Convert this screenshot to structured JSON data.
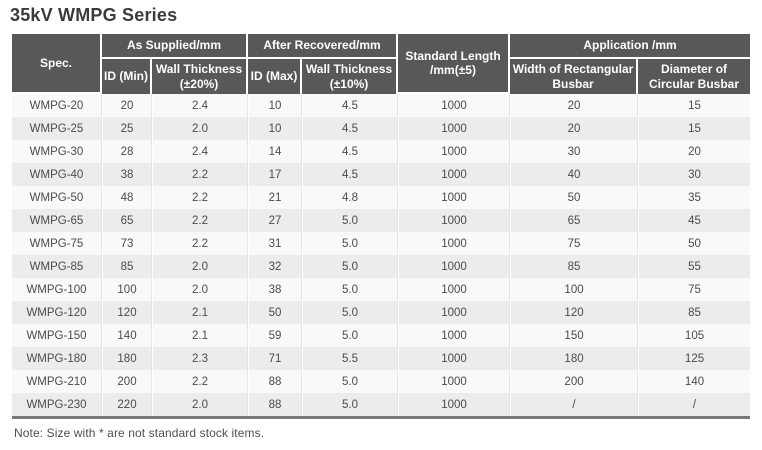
{
  "page": {
    "title": "35kV WMPG Series",
    "note": "Note: Size with * are not standard stock items."
  },
  "table": {
    "header": {
      "spec": "Spec.",
      "as_supplied": "As Supplied/mm",
      "after_recovered": "After Recovered/mm",
      "standard_length": "Standard Length /mm(±5)",
      "application": "Application /mm",
      "id_min": "ID (Min)",
      "wall_thickness_20": "Wall Thickness (±20%)",
      "id_max": "ID (Max)",
      "wall_thickness_10": "Wall Thickness (±10%)",
      "width_rect_busbar": "Width of Rectangular Busbar",
      "dia_circ_busbar": "Diameter of Circular Busbar"
    },
    "rows": [
      [
        "WMPG-20",
        "20",
        "2.4",
        "10",
        "4.5",
        "1000",
        "20",
        "15"
      ],
      [
        "WMPG-25",
        "25",
        "2.0",
        "10",
        "4.5",
        "1000",
        "20",
        "15"
      ],
      [
        "WMPG-30",
        "28",
        "2.4",
        "14",
        "4.5",
        "1000",
        "30",
        "20"
      ],
      [
        "WMPG-40",
        "38",
        "2.2",
        "17",
        "4.5",
        "1000",
        "40",
        "30"
      ],
      [
        "WMPG-50",
        "48",
        "2.2",
        "21",
        "4.8",
        "1000",
        "50",
        "35"
      ],
      [
        "WMPG-65",
        "65",
        "2.2",
        "27",
        "5.0",
        "1000",
        "65",
        "45"
      ],
      [
        "WMPG-75",
        "73",
        "2.2",
        "31",
        "5.0",
        "1000",
        "75",
        "50"
      ],
      [
        "WMPG-85",
        "85",
        "2.0",
        "32",
        "5.0",
        "1000",
        "85",
        "55"
      ],
      [
        "WMPG-100",
        "100",
        "2.0",
        "38",
        "5.0",
        "1000",
        "100",
        "75"
      ],
      [
        "WMPG-120",
        "120",
        "2.1",
        "50",
        "5.0",
        "1000",
        "120",
        "85"
      ],
      [
        "WMPG-150",
        "140",
        "2.1",
        "59",
        "5.0",
        "1000",
        "150",
        "105"
      ],
      [
        "WMPG-180",
        "180",
        "2.3",
        "71",
        "5.5",
        "1000",
        "180",
        "125"
      ],
      [
        "WMPG-210",
        "200",
        "2.2",
        "88",
        "5.0",
        "1000",
        "200",
        "140"
      ],
      [
        "WMPG-230",
        "220",
        "2.0",
        "88",
        "5.0",
        "1000",
        "/",
        "/"
      ]
    ]
  },
  "colors": {
    "header_bg": "#595757",
    "row_base": "#f9f9f9",
    "row_alt": "#ececec",
    "table_border": "#7a7a7a",
    "title_color": "#3b3b3d",
    "cell_text": "#4b4b4b"
  }
}
